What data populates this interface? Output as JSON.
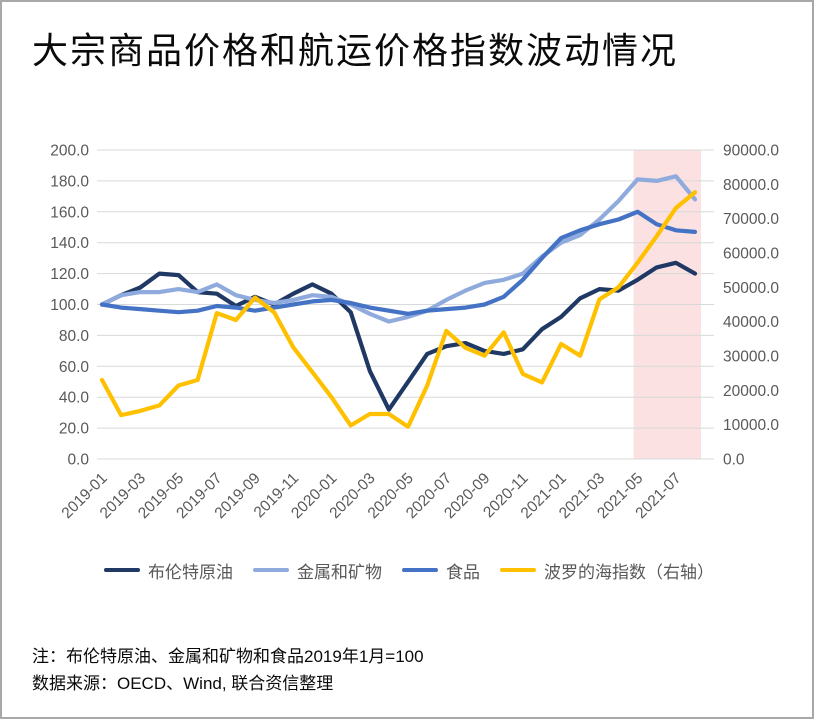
{
  "header": {
    "title": "大宗商品价格和航运价格指数波动情况"
  },
  "notes": {
    "line1": "注：布伦特原油、金属和矿物和食品2019年1月=100",
    "line2": "数据来源：OECD、Wind, 联合资信整理"
  },
  "colors": {
    "grid": "#d9d9d9",
    "axis_text": "#595959",
    "highlight_band": "#fbe1e2",
    "frame_border": "#a8a8a8"
  },
  "chart_data": {
    "type": "line",
    "title": "大宗商品价格和航运价格指数波动情况",
    "xlabel": "",
    "ylabel_left": "",
    "ylabel_right": "",
    "grid": true,
    "legend_position": "bottom",
    "x": [
      "2019-01",
      "2019-02",
      "2019-03",
      "2019-04",
      "2019-05",
      "2019-06",
      "2019-07",
      "2019-08",
      "2019-09",
      "2019-10",
      "2019-11",
      "2019-12",
      "2020-01",
      "2020-02",
      "2020-03",
      "2020-04",
      "2020-05",
      "2020-06",
      "2020-07",
      "2020-08",
      "2020-09",
      "2020-10",
      "2020-11",
      "2020-12",
      "2021-01",
      "2021-02",
      "2021-03",
      "2021-04",
      "2021-05",
      "2021-06",
      "2021-07",
      "2021-08"
    ],
    "x_tick_labels": [
      "2019-01",
      "2019-03",
      "2019-05",
      "2019-07",
      "2019-09",
      "2019-11",
      "2020-01",
      "2020-03",
      "2020-05",
      "2020-07",
      "2020-09",
      "2020-11",
      "2021-01",
      "2021-03",
      "2021-05",
      "2021-07"
    ],
    "left_axis": {
      "min": 0,
      "max": 200,
      "step": 20,
      "tick_labels": [
        "200.0",
        "180.0",
        "160.0",
        "140.0",
        "120.0",
        "100.0",
        "80.0",
        "60.0",
        "40.0",
        "20.0",
        "0.0"
      ]
    },
    "right_axis": {
      "min": 0,
      "max": 90000,
      "step": 10000,
      "tick_labels": [
        "90000.0",
        "80000.0",
        "70000.0",
        "60000.0",
        "50000.0",
        "40000.0",
        "30000.0",
        "20000.0",
        "10000.0",
        "0.0"
      ]
    },
    "highlight_band": {
      "from": "2021-05",
      "to": "2021-08",
      "color": "#fbe1e2"
    },
    "series": [
      {
        "name": "布伦特原油",
        "color": "#1f3864",
        "axis": "left",
        "values": [
          100,
          106,
          111,
          120,
          119,
          108,
          107,
          99,
          105,
          100,
          107,
          113,
          107,
          95,
          57,
          32,
          50,
          68,
          73,
          75,
          70,
          68,
          71,
          84,
          92,
          104,
          110,
          109,
          116,
          124,
          127,
          120
        ]
      },
      {
        "name": "金属和矿物",
        "color": "#8faadc",
        "axis": "left",
        "values": [
          100,
          106,
          108,
          108,
          110,
          108,
          113,
          106,
          103,
          101,
          103,
          106,
          105,
          100,
          94,
          89,
          92,
          96,
          103,
          109,
          114,
          116,
          120,
          131,
          140,
          145,
          155,
          167,
          181,
          180,
          183,
          168
        ]
      },
      {
        "name": "食品",
        "color": "#4472c4",
        "axis": "left",
        "values": [
          100,
          98,
          97,
          96,
          95,
          96,
          99,
          98,
          96,
          98,
          100,
          102,
          103,
          101,
          98,
          96,
          94,
          96,
          97,
          98,
          100,
          105,
          116,
          130,
          143,
          148,
          152,
          155,
          160,
          152,
          148,
          147
        ]
      },
      {
        "name": "波罗的海指数（右轴）",
        "color": "#ffc000",
        "axis": "right",
        "values": [
          23000,
          12800,
          14000,
          15600,
          21400,
          23000,
          42500,
          40500,
          47000,
          42700,
          32500,
          25300,
          18000,
          9800,
          13100,
          13100,
          9400,
          21400,
          37300,
          32400,
          30100,
          36900,
          24800,
          22300,
          33500,
          30100,
          46500,
          50000,
          57200,
          64900,
          73100,
          77700
        ]
      }
    ]
  }
}
